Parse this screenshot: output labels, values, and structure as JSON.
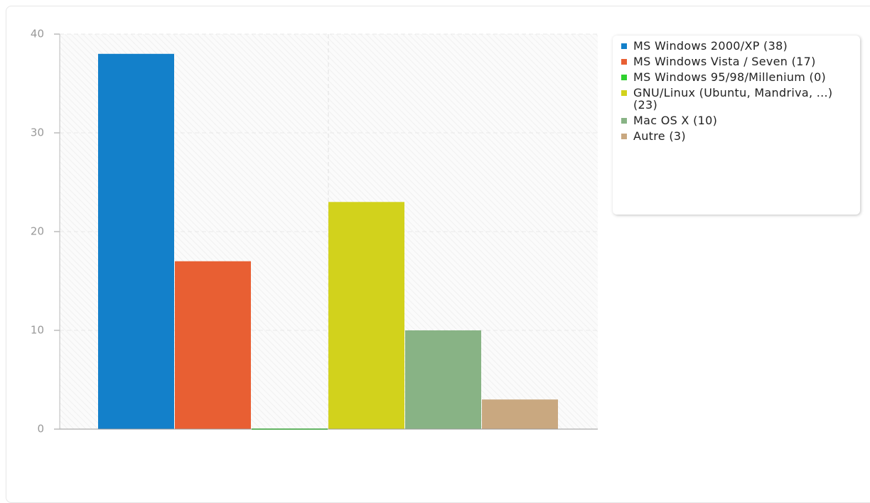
{
  "chart_data": {
    "type": "bar",
    "series": [
      {
        "name": "MS Windows 2000/XP (38)",
        "color": "#1380ca",
        "values": [
          38
        ]
      },
      {
        "name": "MS Windows Vista / Seven (17)",
        "color": "#e85f33",
        "values": [
          17
        ]
      },
      {
        "name": "MS Windows 95/98/Millenium (0)",
        "color": "#2fd12f",
        "values": [
          0
        ]
      },
      {
        "name": "GNU/Linux (Ubuntu, Mandriva, ...) (23)",
        "color": "#d2d21c",
        "values": [
          23
        ]
      },
      {
        "name": "Mac OS X (10)",
        "color": "#88b385",
        "values": [
          10
        ]
      },
      {
        "name": "Autre (3)",
        "color": "#c9a880",
        "values": [
          3
        ]
      }
    ],
    "ylim": [
      0,
      40
    ],
    "yticks": [
      0,
      10,
      20,
      30,
      40
    ],
    "grid": true,
    "legend": "right"
  }
}
